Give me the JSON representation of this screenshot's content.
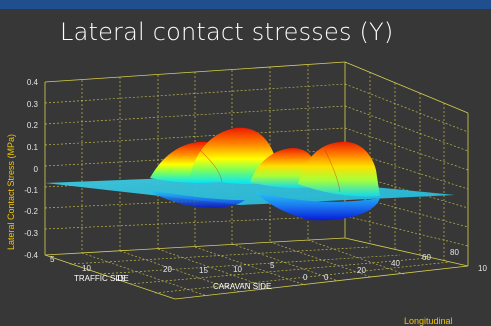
{
  "slide": {
    "title": "Lateral contact stresses (Y)"
  },
  "chart_data": {
    "type": "surface",
    "zlabel": "Lateral Contact Stress (MPa)",
    "z_ticks": [
      "0.4",
      "0.3",
      "0.2",
      "0.1",
      "0",
      "-0.1",
      "-0.2",
      "-0.3",
      "-0.4"
    ],
    "zlim": [
      -0.4,
      0.4
    ],
    "lateral_ticks": [
      "5",
      "10",
      "15",
      "20",
      "15",
      "10",
      "5",
      "0"
    ],
    "lateral_side_labels": {
      "left": "TRAFFIC SIDE",
      "right": "CARAVAN SIDE"
    },
    "longitudinal_ticks": [
      "0",
      "20",
      "40",
      "60",
      "80",
      "10"
    ],
    "longitudinal_label": "Longitudinal",
    "grid": true,
    "colormap": "jet",
    "peaks": [
      {
        "lateral": 8,
        "longitudinal": 45,
        "stress": 0.22
      },
      {
        "lateral": 12,
        "longitudinal": 48,
        "stress": 0.18
      },
      {
        "lateral": -10,
        "longitudinal": 52,
        "stress": 0.13
      },
      {
        "lateral": -14,
        "longitudinal": 50,
        "stress": 0.15
      }
    ],
    "troughs": [
      {
        "lateral": -12,
        "longitudinal": 50,
        "stress": -0.1
      }
    ]
  }
}
